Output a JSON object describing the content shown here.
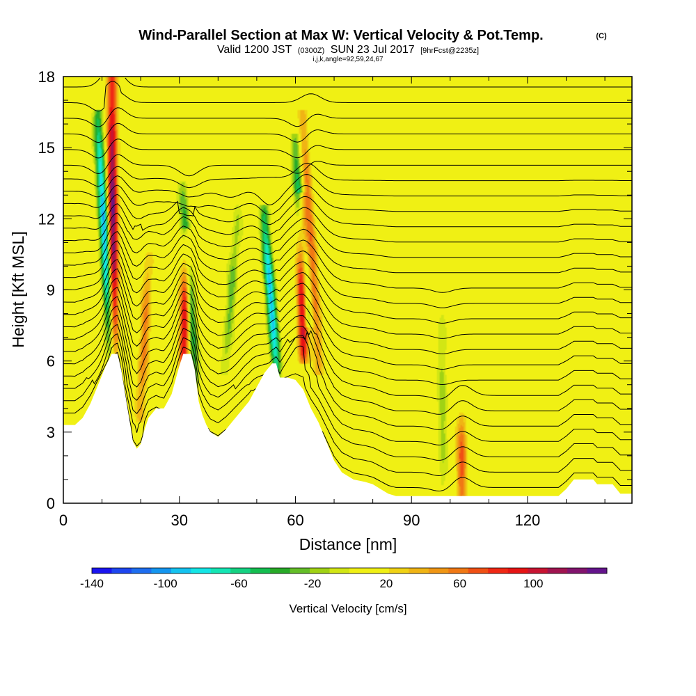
{
  "header": {
    "title_main": "Wind-Parallel Section at Max W: Vertical Velocity & Pot.Temp.",
    "title_mark": "(C)",
    "valid_prefix": "Valid 1200 JST",
    "valid_utc": "(0300Z)",
    "valid_date": "SUN 23 Jul 2017",
    "forecast": "[9hrFcst@2235z]",
    "indices": "i,j,k,angle=92,59,24,67"
  },
  "colorbar": {
    "label": "Vertical Velocity [cm/s]",
    "tick_labels": [
      "-140",
      "-100",
      "-60",
      "-20",
      "20",
      "60",
      "100"
    ],
    "min": -140,
    "max": 140,
    "colors": [
      "#1a14f0",
      "#1e46f0",
      "#1e6ef0",
      "#1496f0",
      "#14c3f0",
      "#14e6e6",
      "#14e6b4",
      "#14d282",
      "#14be50",
      "#28aa28",
      "#64be28",
      "#a0d214",
      "#d2e614",
      "#f0f014",
      "#f0f014",
      "#f0d214",
      "#f0b414",
      "#f09614",
      "#f07814",
      "#f05014",
      "#f02814",
      "#e61414",
      "#c81432",
      "#a01450",
      "#82146e",
      "#64148c"
    ]
  },
  "chart_data": {
    "type": "heatmap",
    "title": "Wind-Parallel Section at Max W: Vertical Velocity & Pot.Temp.",
    "xlabel": "Distance [nm]",
    "ylabel": "Height [Kft MSL]",
    "xlim": [
      0,
      147
    ],
    "ylim": [
      0,
      18
    ],
    "x_ticks": [
      0,
      30,
      60,
      90,
      120
    ],
    "y_ticks": [
      0,
      3,
      6,
      9,
      12,
      15,
      18
    ],
    "shading": "Vertical Velocity [cm/s]",
    "contours": "Potential temperature",
    "background_value": 10,
    "features": [
      {
        "x_base": 13,
        "y_base": 6.3,
        "x_top": 12.5,
        "y_top": 18,
        "peak": 120
      },
      {
        "x_base": 12.5,
        "y_base": 6.3,
        "x_top": 9,
        "y_top": 16,
        "peak": -110
      },
      {
        "x_base": 31,
        "y_base": 5.5,
        "x_top": 32,
        "y_top": 11,
        "peak": 90
      },
      {
        "x_base": 34,
        "y_base": 5.5,
        "x_top": 31,
        "y_top": 13,
        "peak": -60
      },
      {
        "x_base": 55,
        "y_base": 5.8,
        "x_top": 52,
        "y_top": 12,
        "peak": -100
      },
      {
        "x_base": 62,
        "y_base": 6.5,
        "x_top": 61.5,
        "y_top": 12.5,
        "peak": 110
      },
      {
        "x_base": 63,
        "y_base": 8,
        "x_top": 60,
        "y_top": 15,
        "peak": -70
      },
      {
        "x_base": 66,
        "y_base": 6,
        "x_top": 62,
        "y_top": 16,
        "peak": 50
      },
      {
        "x_base": 103,
        "y_base": 0.3,
        "x_top": 103,
        "y_top": 3.5,
        "peak": 60
      },
      {
        "x_base": 98,
        "y_base": 1,
        "x_top": 98,
        "y_top": 8,
        "peak": -25
      },
      {
        "x_base": 42,
        "y_base": 6,
        "x_top": 45,
        "y_top": 12,
        "peak": -35
      },
      {
        "x_base": 20,
        "y_base": 4,
        "x_top": 22,
        "y_top": 10,
        "peak": 45
      }
    ],
    "terrain": [
      [
        0,
        3.3
      ],
      [
        3,
        3.3
      ],
      [
        5,
        3.6
      ],
      [
        7,
        4.2
      ],
      [
        9,
        5.0
      ],
      [
        11,
        5.8
      ],
      [
        12.5,
        6.3
      ],
      [
        14,
        6.3
      ],
      [
        15,
        5.6
      ],
      [
        16,
        4.6
      ],
      [
        17,
        3.6
      ],
      [
        18,
        2.6
      ],
      [
        19,
        2.3
      ],
      [
        20,
        2.5
      ],
      [
        21,
        3.1
      ],
      [
        22,
        3.6
      ],
      [
        24,
        4.0
      ],
      [
        26,
        4.0
      ],
      [
        28,
        4.6
      ],
      [
        29,
        5.2
      ],
      [
        30,
        5.8
      ],
      [
        31,
        6.3
      ],
      [
        33,
        6.3
      ],
      [
        34,
        5.6
      ],
      [
        35,
        4.3
      ],
      [
        36,
        3.7
      ],
      [
        37,
        3.3
      ],
      [
        38,
        3.0
      ],
      [
        40,
        2.8
      ],
      [
        42,
        3.1
      ],
      [
        44,
        3.5
      ],
      [
        46,
        3.9
      ],
      [
        48,
        4.3
      ],
      [
        50,
        4.9
      ],
      [
        52,
        5.5
      ],
      [
        54,
        5.9
      ],
      [
        55,
        5.9
      ],
      [
        56,
        5.3
      ],
      [
        58,
        5.3
      ],
      [
        60,
        5.2
      ],
      [
        62,
        4.8
      ],
      [
        64,
        4.0
      ],
      [
        66,
        3.4
      ],
      [
        68,
        2.6
      ],
      [
        70,
        1.8
      ],
      [
        72,
        1.3
      ],
      [
        75,
        1.0
      ],
      [
        78,
        0.9
      ],
      [
        80,
        0.8
      ],
      [
        82,
        0.6
      ],
      [
        84,
        0.4
      ],
      [
        86,
        0.3
      ],
      [
        110,
        0.3
      ],
      [
        128,
        0.3
      ],
      [
        130,
        0.6
      ],
      [
        132,
        1.0
      ],
      [
        137,
        1.0
      ],
      [
        138,
        0.8
      ],
      [
        142,
        0.8
      ],
      [
        144,
        0.4
      ],
      [
        147,
        0.4
      ]
    ]
  }
}
